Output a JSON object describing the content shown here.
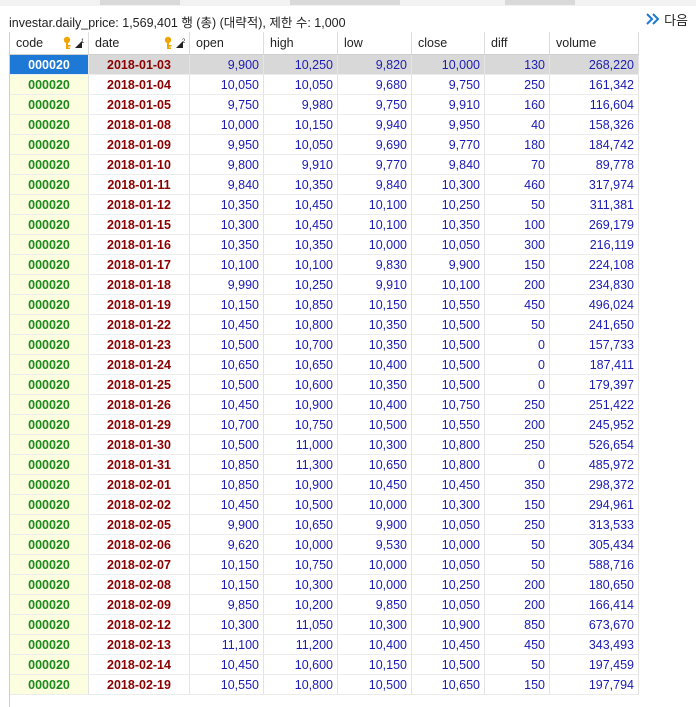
{
  "info_text": "investar.daily_price: 1,569,401 행 (총) (대략적), 제한 수: 1,000",
  "next_label": "다음",
  "columns": [
    "code",
    "date",
    "open",
    "high",
    "low",
    "close",
    "diff",
    "volume"
  ],
  "rows": [
    [
      "000020",
      "2018-01-03",
      "9,900",
      "10,250",
      "9,820",
      "10,000",
      "130",
      "268,220"
    ],
    [
      "000020",
      "2018-01-04",
      "10,050",
      "10,050",
      "9,680",
      "9,750",
      "250",
      "161,342"
    ],
    [
      "000020",
      "2018-01-05",
      "9,750",
      "9,980",
      "9,750",
      "9,910",
      "160",
      "116,604"
    ],
    [
      "000020",
      "2018-01-08",
      "10,000",
      "10,150",
      "9,940",
      "9,950",
      "40",
      "158,326"
    ],
    [
      "000020",
      "2018-01-09",
      "9,950",
      "10,050",
      "9,690",
      "9,770",
      "180",
      "184,742"
    ],
    [
      "000020",
      "2018-01-10",
      "9,800",
      "9,910",
      "9,770",
      "9,840",
      "70",
      "89,778"
    ],
    [
      "000020",
      "2018-01-11",
      "9,840",
      "10,350",
      "9,840",
      "10,300",
      "460",
      "317,974"
    ],
    [
      "000020",
      "2018-01-12",
      "10,350",
      "10,450",
      "10,100",
      "10,250",
      "50",
      "311,381"
    ],
    [
      "000020",
      "2018-01-15",
      "10,300",
      "10,450",
      "10,100",
      "10,350",
      "100",
      "269,179"
    ],
    [
      "000020",
      "2018-01-16",
      "10,350",
      "10,350",
      "10,000",
      "10,050",
      "300",
      "216,119"
    ],
    [
      "000020",
      "2018-01-17",
      "10,100",
      "10,100",
      "9,830",
      "9,900",
      "150",
      "224,108"
    ],
    [
      "000020",
      "2018-01-18",
      "9,990",
      "10,250",
      "9,910",
      "10,100",
      "200",
      "234,830"
    ],
    [
      "000020",
      "2018-01-19",
      "10,150",
      "10,850",
      "10,150",
      "10,550",
      "450",
      "496,024"
    ],
    [
      "000020",
      "2018-01-22",
      "10,450",
      "10,800",
      "10,350",
      "10,500",
      "50",
      "241,650"
    ],
    [
      "000020",
      "2018-01-23",
      "10,500",
      "10,700",
      "10,350",
      "10,500",
      "0",
      "157,733"
    ],
    [
      "000020",
      "2018-01-24",
      "10,650",
      "10,650",
      "10,400",
      "10,500",
      "0",
      "187,411"
    ],
    [
      "000020",
      "2018-01-25",
      "10,500",
      "10,600",
      "10,350",
      "10,500",
      "0",
      "179,397"
    ],
    [
      "000020",
      "2018-01-26",
      "10,450",
      "10,900",
      "10,400",
      "10,750",
      "250",
      "251,422"
    ],
    [
      "000020",
      "2018-01-29",
      "10,700",
      "10,750",
      "10,500",
      "10,550",
      "200",
      "245,952"
    ],
    [
      "000020",
      "2018-01-30",
      "10,500",
      "11,000",
      "10,300",
      "10,800",
      "250",
      "526,654"
    ],
    [
      "000020",
      "2018-01-31",
      "10,850",
      "11,300",
      "10,650",
      "10,800",
      "0",
      "485,972"
    ],
    [
      "000020",
      "2018-02-01",
      "10,850",
      "10,900",
      "10,450",
      "10,450",
      "350",
      "298,372"
    ],
    [
      "000020",
      "2018-02-02",
      "10,450",
      "10,500",
      "10,000",
      "10,300",
      "150",
      "294,961"
    ],
    [
      "000020",
      "2018-02-05",
      "9,900",
      "10,650",
      "9,900",
      "10,050",
      "250",
      "313,533"
    ],
    [
      "000020",
      "2018-02-06",
      "9,620",
      "10,000",
      "9,530",
      "10,000",
      "50",
      "305,434"
    ],
    [
      "000020",
      "2018-02-07",
      "10,150",
      "10,750",
      "10,000",
      "10,050",
      "50",
      "588,716"
    ],
    [
      "000020",
      "2018-02-08",
      "10,150",
      "10,300",
      "10,000",
      "10,250",
      "200",
      "180,650"
    ],
    [
      "000020",
      "2018-02-09",
      "9,850",
      "10,200",
      "9,850",
      "10,050",
      "200",
      "166,414"
    ],
    [
      "000020",
      "2018-02-12",
      "10,300",
      "11,050",
      "10,300",
      "10,900",
      "850",
      "673,670"
    ],
    [
      "000020",
      "2018-02-13",
      "11,100",
      "11,200",
      "10,400",
      "10,450",
      "450",
      "343,493"
    ],
    [
      "000020",
      "2018-02-14",
      "10,450",
      "10,600",
      "10,150",
      "10,500",
      "50",
      "197,459"
    ],
    [
      "000020",
      "2018-02-19",
      "10,550",
      "10,800",
      "10,500",
      "10,650",
      "150",
      "197,794"
    ]
  ],
  "colors": {
    "code_text": "#1a8a1a",
    "date_text": "#8b0000",
    "number_text": "#1c1cb4",
    "code_bg": "#fdfde0",
    "selected_cell": "#1e78d6",
    "selected_row": "#d8d8d8",
    "next_arrow": "#1e78d6"
  }
}
